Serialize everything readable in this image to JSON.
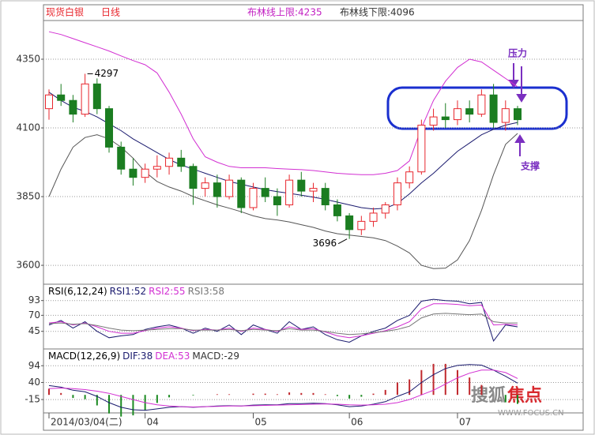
{
  "chart_data": [
    {
      "type": "candlestick",
      "title": "现货白银",
      "subtitle": "日线",
      "band_upper_label": "布林线上限:4235",
      "band_lower_label": "布林线下限:4096",
      "categories": [
        "2014/03/04(二)",
        null,
        null,
        null,
        null,
        null,
        null,
        null,
        "04",
        null,
        null,
        null,
        null,
        null,
        null,
        null,
        null,
        "05",
        null,
        null,
        null,
        null,
        null,
        null,
        null,
        "06",
        null,
        null,
        null,
        null,
        null,
        null,
        null,
        null,
        "07",
        null,
        null,
        null,
        null,
        null
      ],
      "open": [
        4170,
        4220,
        4200,
        4150,
        4260,
        4170,
        4030,
        3950,
        3920,
        3950,
        3960,
        3990,
        3960,
        3880,
        3900,
        3850,
        3910,
        3810,
        3880,
        3850,
        3820,
        3910,
        3870,
        3880,
        3820,
        3780,
        3730,
        3760,
        3790,
        3820,
        3900,
        3940,
        4110,
        4140,
        4130,
        4170,
        4150,
        4220,
        4120,
        4170
      ],
      "high": [
        4240,
        4260,
        4220,
        4297,
        4280,
        4180,
        4050,
        3990,
        3970,
        4000,
        4010,
        4020,
        3970,
        3920,
        3930,
        3930,
        3920,
        3900,
        3920,
        3880,
        3930,
        3940,
        3900,
        3900,
        3840,
        3790,
        3780,
        3810,
        3830,
        3920,
        3960,
        4130,
        4170,
        4190,
        4200,
        4200,
        4240,
        4260,
        4200,
        4180
      ],
      "low": [
        4130,
        4180,
        4120,
        4140,
        4150,
        4010,
        3930,
        3890,
        3900,
        3920,
        3930,
        3940,
        3820,
        3850,
        3810,
        3840,
        3790,
        3800,
        3830,
        3780,
        3810,
        3850,
        3830,
        3800,
        3760,
        3696,
        3710,
        3740,
        3770,
        3800,
        3880,
        3930,
        4090,
        4100,
        4110,
        4120,
        4140,
        4100,
        4090,
        4110
      ],
      "close": [
        4220,
        4200,
        4150,
        4260,
        4170,
        4030,
        3950,
        3920,
        3950,
        3960,
        3990,
        3960,
        3880,
        3900,
        3850,
        3910,
        3810,
        3880,
        3850,
        3820,
        3910,
        3870,
        3880,
        3820,
        3780,
        3730,
        3760,
        3790,
        3820,
        3900,
        3940,
        4110,
        4140,
        4130,
        4170,
        4150,
        4220,
        4120,
        4170,
        4130
      ],
      "up_color": "#e8262d",
      "down_color": "#1b7d21",
      "lines": [
        {
          "color": "#d22fd2",
          "values": [
            4450,
            4440,
            4425,
            4410,
            4395,
            4380,
            4362,
            4345,
            4330,
            4300,
            4230,
            4150,
            4060,
            3995,
            3975,
            3960,
            3955,
            3955,
            3955,
            3952,
            3950,
            3948,
            3945,
            3940,
            3935,
            3932,
            3930,
            3930,
            3935,
            3945,
            3980,
            4100,
            4200,
            4270,
            4320,
            4350,
            4340,
            4310,
            4280,
            4250
          ]
        },
        {
          "color": "#1a1a6e",
          "values": [
            4230,
            4200,
            4175,
            4160,
            4140,
            4115,
            4090,
            4060,
            4035,
            4010,
            3985,
            3965,
            3950,
            3935,
            3920,
            3905,
            3895,
            3885,
            3875,
            3868,
            3862,
            3855,
            3848,
            3840,
            3830,
            3820,
            3810,
            3805,
            3808,
            3825,
            3860,
            3900,
            3935,
            3975,
            4015,
            4045,
            4075,
            4095,
            4110,
            4120
          ]
        },
        {
          "color": "#555555",
          "values": [
            3850,
            3950,
            4030,
            4065,
            4075,
            4060,
            4030,
            3990,
            3940,
            3905,
            3885,
            3870,
            3850,
            3835,
            3820,
            3808,
            3795,
            3780,
            3770,
            3765,
            3758,
            3748,
            3738,
            3725,
            3715,
            3710,
            3705,
            3700,
            3690,
            3670,
            3645,
            3600,
            3588,
            3590,
            3620,
            3690,
            3800,
            3930,
            4040,
            4080
          ]
        }
      ],
      "annotations": [
        {
          "text": "4297",
          "index": 3,
          "value": 4297
        },
        {
          "text": "3696",
          "index": 25,
          "value": 3696
        }
      ],
      "callouts": [
        "压力",
        "支撑"
      ],
      "ylim": [
        3537,
        4485
      ],
      "yticks": [
        3600,
        3850,
        4100,
        4350
      ],
      "grid": true
    },
    {
      "type": "line",
      "title": "RSI(6,12,24)",
      "series": [
        {
          "name": "RSI1:52",
          "color": "#1a1a6e",
          "values": [
            55,
            62,
            50,
            60,
            45,
            35,
            38,
            40,
            48,
            52,
            55,
            50,
            42,
            50,
            45,
            55,
            40,
            55,
            48,
            42,
            60,
            48,
            52,
            40,
            32,
            28,
            38,
            45,
            50,
            62,
            70,
            92,
            95,
            93,
            92,
            88,
            90,
            30,
            55,
            52
          ]
        },
        {
          "name": "RSI2:55",
          "color": "#d22fd2",
          "values": [
            58,
            60,
            55,
            58,
            52,
            45,
            42,
            42,
            46,
            50,
            52,
            50,
            46,
            48,
            47,
            50,
            45,
            50,
            48,
            45,
            52,
            48,
            49,
            44,
            38,
            35,
            38,
            42,
            46,
            52,
            60,
            80,
            88,
            88,
            87,
            85,
            86,
            55,
            56,
            55
          ]
        },
        {
          "name": "RSI3:58",
          "color": "#777777",
          "values": [
            57,
            58,
            56,
            57,
            54,
            50,
            47,
            46,
            47,
            48,
            49,
            49,
            47,
            47,
            47,
            48,
            46,
            48,
            47,
            46,
            49,
            47,
            47,
            45,
            42,
            40,
            41,
            43,
            45,
            48,
            53,
            66,
            72,
            73,
            72,
            71,
            72,
            60,
            58,
            58
          ]
        }
      ],
      "ylim": [
        20,
        116
      ],
      "yticks": [
        45,
        70,
        93
      ],
      "grid": true
    },
    {
      "type": "macd",
      "title": "MACD(12,26,9)",
      "series": [
        {
          "name": "DIF:38",
          "color": "#1a1a6e",
          "values": [
            30,
            25,
            15,
            10,
            -5,
            -25,
            -40,
            -48,
            -50,
            -45,
            -40,
            -38,
            -40,
            -38,
            -36,
            -35,
            -36,
            -33,
            -32,
            -32,
            -28,
            -28,
            -27,
            -28,
            -32,
            -38,
            -36,
            -30,
            -22,
            -5,
            10,
            40,
            65,
            85,
            95,
            98,
            96,
            80,
            60,
            38
          ]
        },
        {
          "name": "DEA:53",
          "color": "#d22fd2",
          "values": [
            20,
            22,
            20,
            17,
            12,
            5,
            -5,
            -15,
            -25,
            -32,
            -36,
            -38,
            -39,
            -38,
            -37,
            -36,
            -36,
            -35,
            -34,
            -33,
            -32,
            -31,
            -30,
            -29,
            -30,
            -32,
            -33,
            -32,
            -30,
            -25,
            -15,
            0,
            15,
            35,
            55,
            70,
            80,
            80,
            72,
            53
          ]
        }
      ],
      "bars": {
        "name": "MACD:-29",
        "up_color": "#c0282d",
        "down_color": "#1b8a21",
        "values": [
          20,
          6,
          -10,
          -14,
          -34,
          -60,
          -70,
          -66,
          -50,
          -26,
          -8,
          0,
          -2,
          0,
          2,
          2,
          0,
          4,
          4,
          2,
          8,
          6,
          6,
          2,
          -4,
          -12,
          -6,
          4,
          16,
          40,
          50,
          80,
          100,
          100,
          80,
          56,
          32,
          0,
          -24,
          -29
        ]
      },
      "ylim": [
        -53,
        143
      ],
      "yticks": [
        -15,
        40,
        94
      ],
      "grid": true
    }
  ],
  "watermark": {
    "brand": "搜狐",
    "brand_accent": "焦点",
    "site": "WWW.FOCUS.CN"
  }
}
